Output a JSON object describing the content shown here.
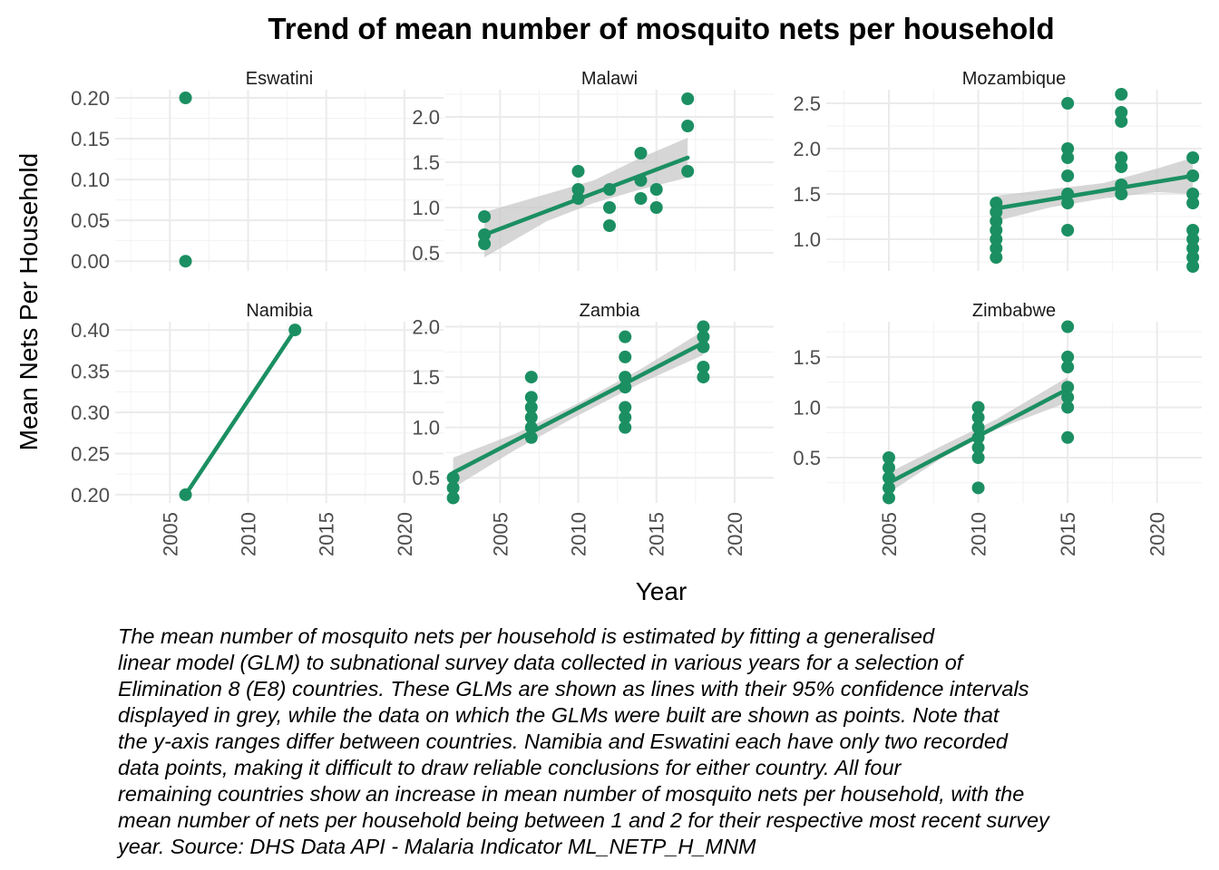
{
  "chart_data": {
    "type": "scatter",
    "title": "Trend of mean number of mosquito nets per household",
    "xlabel": "Year",
    "ylabel": "Mean Nets Per Household",
    "xlim": [
      2001.5,
      2022.5
    ],
    "x_ticks": [
      2005,
      2010,
      2015,
      2020
    ],
    "grid": true,
    "facet_columns": 3,
    "colors": {
      "series": "#1b8f62",
      "ribbon": "#c8c8c8",
      "grid": "#ebebeb"
    },
    "panels": [
      {
        "name": "Eswatini",
        "ylim": [
          -0.012,
          0.21
        ],
        "y_ticks": [
          0.0,
          0.05,
          0.1,
          0.15,
          0.2
        ],
        "y_tick_labels": [
          "0.00",
          "0.05",
          "0.10",
          "0.15",
          "0.20"
        ],
        "points": [
          [
            2006,
            0.2
          ],
          [
            2006,
            0.0
          ]
        ],
        "fit": null,
        "ci": null
      },
      {
        "name": "Malawi",
        "ylim": [
          0.3,
          2.3
        ],
        "y_ticks": [
          0.5,
          1.0,
          1.5,
          2.0
        ],
        "y_tick_labels": [
          "0.5",
          "1.0",
          "1.5",
          "2.0"
        ],
        "points": [
          [
            2004,
            0.9
          ],
          [
            2004,
            0.7
          ],
          [
            2004,
            0.6
          ],
          [
            2010,
            1.4
          ],
          [
            2010,
            1.2
          ],
          [
            2010,
            1.1
          ],
          [
            2012,
            1.2
          ],
          [
            2012,
            1.0
          ],
          [
            2012,
            0.8
          ],
          [
            2014,
            1.6
          ],
          [
            2014,
            1.3
          ],
          [
            2014,
            1.1
          ],
          [
            2015,
            1.2
          ],
          [
            2015,
            1.0
          ],
          [
            2017,
            2.2
          ],
          [
            2017,
            1.9
          ],
          [
            2017,
            1.4
          ]
        ],
        "fit": [
          [
            2004,
            0.7
          ],
          [
            2017,
            1.55
          ]
        ],
        "ci": [
          [
            2004,
            0.45,
            0.95
          ],
          [
            2008,
            0.85,
            1.15
          ],
          [
            2011,
            1.05,
            1.3
          ],
          [
            2014,
            1.2,
            1.55
          ],
          [
            2017,
            1.33,
            1.77
          ]
        ]
      },
      {
        "name": "Mozambique",
        "ylim": [
          0.65,
          2.65
        ],
        "y_ticks": [
          1.0,
          1.5,
          2.0,
          2.5
        ],
        "y_tick_labels": [
          "1.0",
          "1.5",
          "2.0",
          "2.5"
        ],
        "points": [
          [
            2011,
            1.4
          ],
          [
            2011,
            1.3
          ],
          [
            2011,
            1.2
          ],
          [
            2011,
            1.1
          ],
          [
            2011,
            1.0
          ],
          [
            2011,
            0.9
          ],
          [
            2011,
            0.8
          ],
          [
            2015,
            2.5
          ],
          [
            2015,
            2.0
          ],
          [
            2015,
            1.9
          ],
          [
            2015,
            1.7
          ],
          [
            2015,
            1.5
          ],
          [
            2015,
            1.4
          ],
          [
            2015,
            1.1
          ],
          [
            2018,
            2.6
          ],
          [
            2018,
            2.4
          ],
          [
            2018,
            2.3
          ],
          [
            2018,
            1.9
          ],
          [
            2018,
            1.8
          ],
          [
            2018,
            1.6
          ],
          [
            2018,
            1.5
          ],
          [
            2022,
            1.9
          ],
          [
            2022,
            1.7
          ],
          [
            2022,
            1.5
          ],
          [
            2022,
            1.4
          ],
          [
            2022,
            1.1
          ],
          [
            2022,
            1.0
          ],
          [
            2022,
            0.9
          ],
          [
            2022,
            0.8
          ],
          [
            2022,
            0.7
          ]
        ],
        "fit": [
          [
            2011,
            1.34
          ],
          [
            2022,
            1.7
          ]
        ],
        "ci": [
          [
            2011,
            1.2,
            1.48
          ],
          [
            2014,
            1.35,
            1.55
          ],
          [
            2017,
            1.45,
            1.62
          ],
          [
            2020,
            1.52,
            1.78
          ],
          [
            2022,
            1.5,
            1.9
          ]
        ]
      },
      {
        "name": "Namibia",
        "ylim": [
          0.19,
          0.41
        ],
        "y_ticks": [
          0.2,
          0.25,
          0.3,
          0.35,
          0.4
        ],
        "y_tick_labels": [
          "0.20",
          "0.25",
          "0.30",
          "0.35",
          "0.40"
        ],
        "points": [
          [
            2006,
            0.2
          ],
          [
            2013,
            0.4
          ]
        ],
        "fit": [
          [
            2006,
            0.2
          ],
          [
            2013,
            0.4
          ]
        ],
        "ci": null
      },
      {
        "name": "Zambia",
        "ylim": [
          0.25,
          2.05
        ],
        "y_ticks": [
          0.5,
          1.0,
          1.5,
          2.0
        ],
        "y_tick_labels": [
          "0.5",
          "1.0",
          "1.5",
          "2.0"
        ],
        "points": [
          [
            2002,
            0.5
          ],
          [
            2002,
            0.4
          ],
          [
            2002,
            0.3
          ],
          [
            2007,
            1.5
          ],
          [
            2007,
            1.3
          ],
          [
            2007,
            1.2
          ],
          [
            2007,
            1.1
          ],
          [
            2007,
            1.0
          ],
          [
            2007,
            0.9
          ],
          [
            2013,
            1.9
          ],
          [
            2013,
            1.7
          ],
          [
            2013,
            1.5
          ],
          [
            2013,
            1.4
          ],
          [
            2013,
            1.2
          ],
          [
            2013,
            1.1
          ],
          [
            2013,
            1.0
          ],
          [
            2018,
            2.0
          ],
          [
            2018,
            1.9
          ],
          [
            2018,
            1.8
          ],
          [
            2018,
            1.6
          ],
          [
            2018,
            1.5
          ]
        ],
        "fit": [
          [
            2002,
            0.55
          ],
          [
            2018,
            1.84
          ]
        ],
        "ci": [
          [
            2002,
            0.4,
            0.7
          ],
          [
            2006,
            0.78,
            0.94
          ],
          [
            2010,
            1.12,
            1.24
          ],
          [
            2014,
            1.44,
            1.58
          ],
          [
            2018,
            1.72,
            1.96
          ]
        ]
      },
      {
        "name": "Zimbabwe",
        "ylim": [
          0.05,
          1.85
        ],
        "y_ticks": [
          0.5,
          1.0,
          1.5
        ],
        "y_tick_labels": [
          "0.5",
          "1.0",
          "1.5"
        ],
        "points": [
          [
            2005,
            0.5
          ],
          [
            2005,
            0.4
          ],
          [
            2005,
            0.3
          ],
          [
            2005,
            0.2
          ],
          [
            2005,
            0.1
          ],
          [
            2010,
            1.0
          ],
          [
            2010,
            0.9
          ],
          [
            2010,
            0.8
          ],
          [
            2010,
            0.7
          ],
          [
            2010,
            0.6
          ],
          [
            2010,
            0.5
          ],
          [
            2010,
            0.2
          ],
          [
            2015,
            1.8
          ],
          [
            2015,
            1.5
          ],
          [
            2015,
            1.4
          ],
          [
            2015,
            1.2
          ],
          [
            2015,
            1.1
          ],
          [
            2015,
            1.0
          ],
          [
            2015,
            0.7
          ]
        ],
        "fit": [
          [
            2005,
            0.25
          ],
          [
            2015,
            1.18
          ]
        ],
        "ci": [
          [
            2005,
            0.15,
            0.35
          ],
          [
            2008,
            0.5,
            0.62
          ],
          [
            2011,
            0.78,
            0.88
          ],
          [
            2015,
            1.05,
            1.3
          ]
        ]
      }
    ]
  },
  "caption": "The mean number of mosquito nets per household is estimated by fitting a generalised\nlinear model (GLM) to subnational survey data collected in various years for a selection of\nElimination 8 (E8) countries. These GLMs are shown as lines with their 95% confidence intervals\ndisplayed in grey, while the data on which the GLMs were built are shown as points. Note that\nthe y-axis ranges differ between countries. Namibia and Eswatini each have only two recorded\ndata points, making it difficult to draw reliable conclusions for either country. All four\nremaining countries show an increase in mean number of mosquito nets per household, with the\nmean number of nets per household being between 1 and 2 for their respective most recent survey\nyear. Source: DHS Data API - Malaria Indicator ML_NETP_H_MNM"
}
